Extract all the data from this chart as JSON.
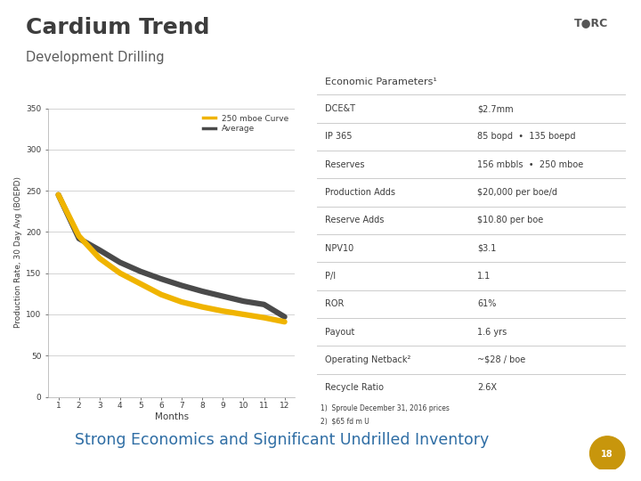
{
  "title": "Cardium Trend",
  "subtitle": "Development Drilling",
  "bg_color": "#ffffff",
  "chart_bg": "#ffffff",
  "title_color": "#3d3d3d",
  "subtitle_color": "#5a5a5a",
  "ylabel": "Production Rate, 30 Day Avg (BOEPD)",
  "xlabel": "Months",
  "ylim": [
    0,
    350
  ],
  "xlim": [
    1,
    12
  ],
  "yticks": [
    0,
    50,
    100,
    150,
    200,
    250,
    300,
    350
  ],
  "xticks": [
    1,
    2,
    3,
    4,
    5,
    6,
    7,
    8,
    9,
    10,
    11,
    12
  ],
  "months": [
    1,
    2,
    3,
    4,
    5,
    6,
    7,
    8,
    9,
    10,
    11,
    12
  ],
  "curve_250": [
    245,
    195,
    168,
    150,
    137,
    124,
    115,
    109,
    104,
    100,
    96,
    91
  ],
  "curve_avg": [
    245,
    192,
    178,
    163,
    152,
    143,
    135,
    128,
    122,
    116,
    112,
    97
  ],
  "curve_250_color": "#f0b400",
  "curve_avg_color": "#4a4a4a",
  "legend_250": "250 mboe Curve",
  "legend_avg": "Average",
  "table_header": "Economic Parameters¹",
  "table_header_bg": "#d9d9d9",
  "table_rows": [
    [
      "DCE&T",
      "$2.7mm"
    ],
    [
      "IP 365",
      "85 bopd  •  135 boepd"
    ],
    [
      "Reserves",
      "156 mbbls  •  250 mboe"
    ],
    [
      "Production Adds",
      "$20,000 per boe/d"
    ],
    [
      "Reserve Adds",
      "$10.80 per boe"
    ],
    [
      "NPV10",
      "$3.1"
    ],
    [
      "P/I",
      "1.1"
    ],
    [
      "ROR",
      "61%"
    ],
    [
      "Payout",
      "1.6 yrs"
    ],
    [
      "Operating Netback²",
      "~$28 / boe"
    ],
    [
      "Recycle Ratio",
      "2.6X"
    ]
  ],
  "footnote1": "1)  Sproule December 31, 2016 prices",
  "footnote2": "2)  $65 fd m U",
  "bottom_text": "Strong Economics and Significant Undrilled Inventory",
  "bottom_text_color": "#2e6da4",
  "grid_color": "#cccccc",
  "axis_color": "#aaaaaa",
  "torc_color": "#c8960c"
}
